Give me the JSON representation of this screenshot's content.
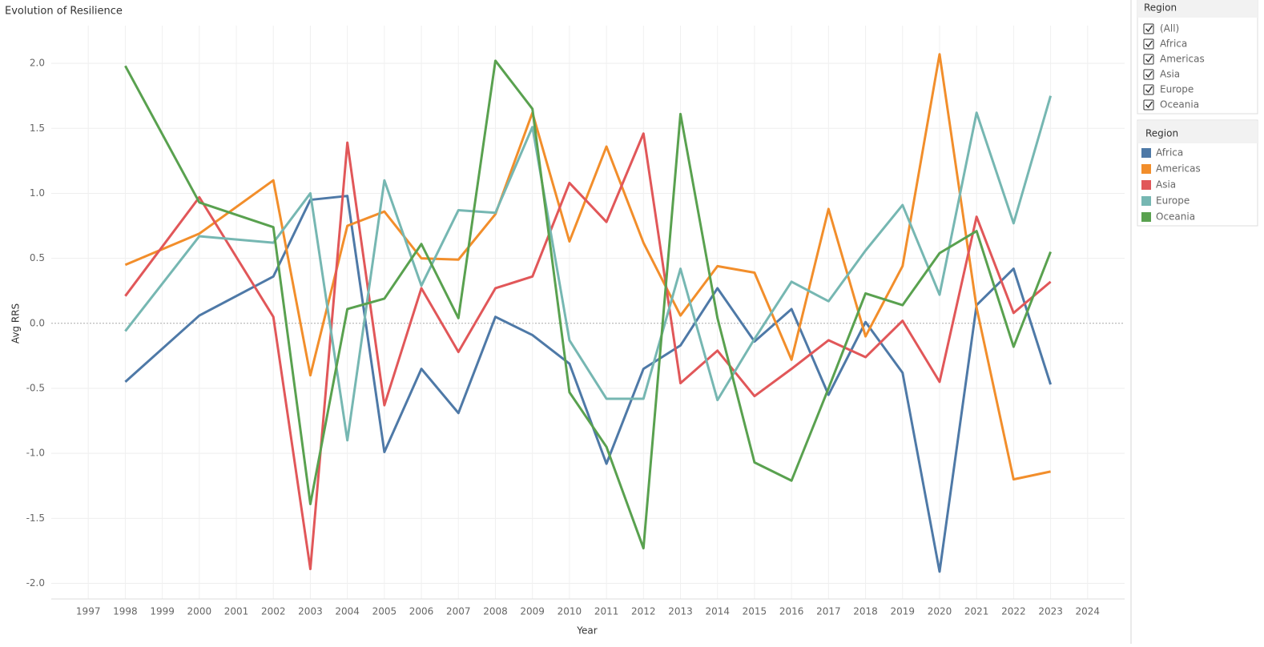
{
  "chart_data": {
    "type": "line",
    "title": "Evolution of Resilience",
    "x_label": "Year",
    "y_label": "Avg RRS",
    "x": [
      1998,
      2000,
      2002,
      2003,
      2004,
      2005,
      2006,
      2007,
      2008,
      2009,
      2010,
      2011,
      2012,
      2013,
      2014,
      2015,
      2016,
      2017,
      2018,
      2019,
      2020,
      2021,
      2022,
      2023
    ],
    "series": [
      {
        "name": "Africa",
        "color": "#4e79a7",
        "values": [
          -0.45,
          0.06,
          0.36,
          0.95,
          0.98,
          -0.99,
          -0.35,
          -0.69,
          0.05,
          -0.09,
          -0.31,
          -1.08,
          -0.35,
          -0.17,
          0.27,
          -0.14,
          0.11,
          -0.55,
          0.01,
          -0.38,
          -1.91,
          0.14,
          0.42,
          -0.47
        ]
      },
      {
        "name": "Americas",
        "color": "#f28e2b",
        "values": [
          0.45,
          0.69,
          1.1,
          -0.4,
          0.75,
          0.86,
          0.5,
          0.49,
          0.84,
          1.62,
          0.63,
          1.36,
          0.62,
          0.06,
          0.44,
          0.39,
          -0.28,
          0.88,
          -0.1,
          0.44,
          2.07,
          0.12,
          -1.2,
          -1.14
        ]
      },
      {
        "name": "Asia",
        "color": "#e15759",
        "values": [
          0.21,
          0.97,
          0.05,
          -1.89,
          1.39,
          -0.63,
          0.27,
          -0.22,
          0.27,
          0.36,
          1.08,
          0.78,
          1.46,
          -0.46,
          -0.21,
          -0.56,
          -0.35,
          -0.13,
          -0.26,
          0.02,
          -0.45,
          0.82,
          0.08,
          0.32
        ]
      },
      {
        "name": "Europe",
        "color": "#76b7b2",
        "values": [
          -0.06,
          0.67,
          0.62,
          1.0,
          -0.9,
          1.1,
          0.29,
          0.87,
          0.85,
          1.51,
          -0.13,
          -0.58,
          -0.58,
          0.42,
          -0.59,
          -0.12,
          0.32,
          0.17,
          0.56,
          0.91,
          0.22,
          1.62,
          0.77,
          1.75
        ]
      },
      {
        "name": "Oceania",
        "color": "#59a14f",
        "values": [
          1.98,
          0.93,
          0.74,
          -1.39,
          0.11,
          0.19,
          0.61,
          0.04,
          2.02,
          1.65,
          -0.53,
          -0.95,
          -1.73,
          1.61,
          0.04,
          -1.07,
          -1.21,
          -0.5,
          0.23,
          0.14,
          0.54,
          0.71,
          -0.18,
          0.55
        ]
      }
    ],
    "xlim": [
      1996,
      2025
    ],
    "xticks": [
      1997,
      1998,
      1999,
      2000,
      2001,
      2002,
      2003,
      2004,
      2005,
      2006,
      2007,
      2008,
      2009,
      2010,
      2011,
      2012,
      2013,
      2014,
      2015,
      2016,
      2017,
      2018,
      2019,
      2020,
      2021,
      2022,
      2023,
      2024
    ],
    "ylim": [
      -2.12,
      2.29
    ],
    "yticks": [
      {
        "value": -2,
        "label": "-2.0"
      },
      {
        "value": -1.5,
        "label": "-1.5"
      },
      {
        "value": -1,
        "label": "-1.0"
      },
      {
        "value": -0.5,
        "label": "-0.5"
      },
      {
        "value": 0,
        "label": "0.0"
      },
      {
        "value": 0.5,
        "label": "0.5"
      },
      {
        "value": 1,
        "label": "1.0"
      },
      {
        "value": 1.5,
        "label": "1.5"
      },
      {
        "value": 2,
        "label": "2.0"
      }
    ],
    "grid": true,
    "legend_title": "Region"
  },
  "filter": {
    "title": "Region",
    "options": [
      "(All)",
      "Africa",
      "Americas",
      "Asia",
      "Europe",
      "Oceania"
    ]
  }
}
